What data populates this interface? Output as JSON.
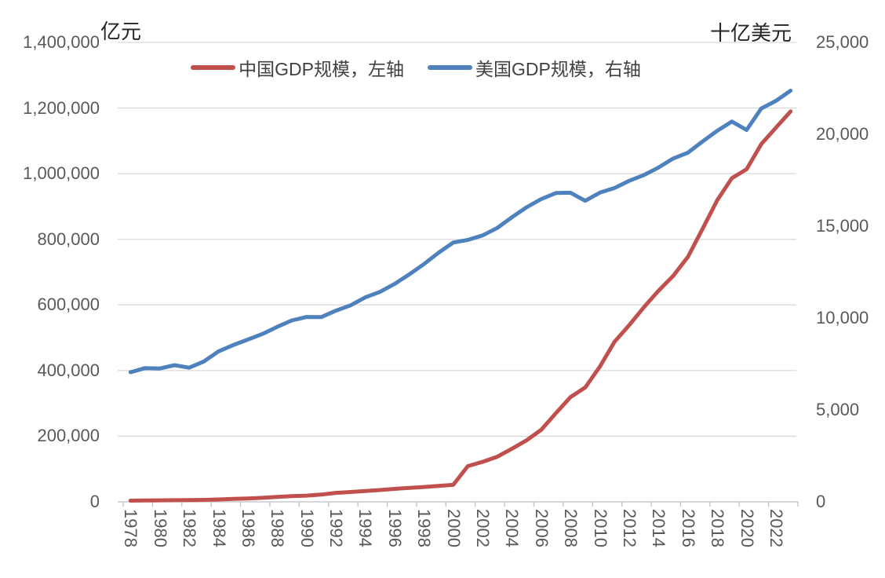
{
  "chart_data": {
    "type": "line",
    "title": "",
    "x": [
      1978,
      1979,
      1980,
      1981,
      1982,
      1983,
      1984,
      1985,
      1986,
      1987,
      1988,
      1989,
      1990,
      1991,
      1992,
      1993,
      1994,
      1995,
      1996,
      1997,
      1998,
      1999,
      2000,
      2001,
      2002,
      2003,
      2004,
      2005,
      2006,
      2007,
      2008,
      2009,
      2010,
      2011,
      2012,
      2013,
      2014,
      2015,
      2016,
      2017,
      2018,
      2019,
      2020,
      2021,
      2022,
      2023
    ],
    "x_tick_labels": [
      "1978",
      "1980",
      "1982",
      "1984",
      "1986",
      "1988",
      "1990",
      "1992",
      "1994",
      "1996",
      "1998",
      "2000",
      "2002",
      "2004",
      "2006",
      "2008",
      "2010",
      "2012",
      "2014",
      "2016",
      "2018",
      "2020",
      "2022"
    ],
    "series": [
      {
        "name": "中国GDP规模，左轴",
        "axis": "left",
        "color": "#C0504D",
        "values": [
          3679,
          4101,
          4588,
          4936,
          5373,
          6021,
          7279,
          9099,
          10376,
          12175,
          15180,
          17180,
          18873,
          22006,
          27195,
          30000,
          33000,
          36000,
          39500,
          42500,
          45300,
          48500,
          51700,
          108900,
          121717,
          137422,
          161840,
          187319,
          219439,
          270092,
          319245,
          348518,
          412119,
          487940,
          538580,
          592963,
          643563,
          688858,
          746395,
          832036,
          919281,
          986515,
          1013567,
          1090000,
          1140000,
          1190000
        ]
      },
      {
        "name": "美国GDP规模，右轴",
        "axis": "right",
        "color": "#4F81BD",
        "values": [
          7050,
          7276,
          7255,
          7435,
          7300,
          7636,
          8186,
          8530,
          8828,
          9137,
          9521,
          9873,
          10061,
          10051,
          10403,
          10694,
          11122,
          11422,
          11856,
          12378,
          12935,
          13556,
          14112,
          14253,
          14496,
          14901,
          15482,
          16024,
          16473,
          16802,
          16819,
          16382,
          16824,
          17077,
          17470,
          17784,
          18193,
          18685,
          19002,
          19612,
          20194,
          20692,
          20234,
          21408,
          21822,
          22377
        ]
      }
    ],
    "left_axis": {
      "title": "亿元",
      "min": 0,
      "max": 1400000,
      "step": 200000,
      "tick_labels": [
        "1,400,000",
        "1,200,000",
        "1,000,000",
        "800,000",
        "600,000",
        "400,000",
        "200,000",
        "0"
      ]
    },
    "right_axis": {
      "title": "十亿美元",
      "min": 0,
      "max": 25000,
      "step": 5000,
      "tick_labels": [
        "25,000",
        "20,000",
        "15,000",
        "10,000",
        "5,000",
        "0"
      ]
    },
    "grid": "horizontal-only",
    "legend_position": "top-center",
    "colors": {
      "gridline": "#D9D9D9",
      "axis_line": "#BFBFBF",
      "tick_mark": "#BFBFBF",
      "tick_text": "#595959",
      "title_text": "#262626",
      "legend_text": "#404040",
      "background": "#FFFFFF"
    }
  }
}
